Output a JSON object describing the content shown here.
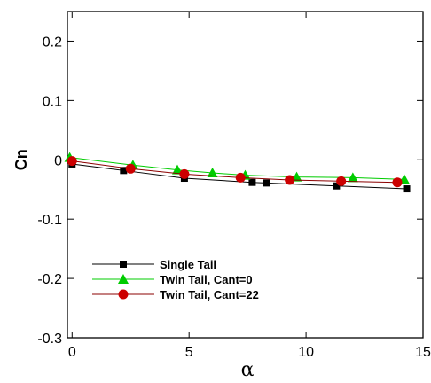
{
  "chart_data": {
    "type": "line",
    "title": "",
    "xlabel": "α",
    "ylabel": "Cn",
    "xlim": [
      -0.2,
      15
    ],
    "ylim": [
      -0.3,
      0.25
    ],
    "x_ticks": [
      0,
      5,
      10,
      15
    ],
    "x_tick_labels": [
      "0",
      "5",
      "10",
      "15"
    ],
    "y_ticks": [
      -0.3,
      -0.2,
      -0.1,
      0,
      0.1,
      0.2
    ],
    "y_tick_labels": [
      "-0.3",
      "-0.2",
      "-0.1",
      "0",
      "0.1",
      "0.2"
    ],
    "grid": false,
    "legend_position": "bottom-left",
    "series": [
      {
        "name": "Single Tail",
        "color": "#000000",
        "marker": "square",
        "x": [
          0.0,
          2.2,
          4.8,
          7.7,
          8.3,
          11.3,
          14.3
        ],
        "y": [
          -0.007,
          -0.018,
          -0.031,
          -0.038,
          -0.039,
          -0.044,
          -0.049
        ]
      },
      {
        "name": "Twin Tail, Cant=0",
        "color": "#00cc00",
        "marker": "triangle",
        "x": [
          -0.1,
          2.6,
          4.5,
          6.0,
          7.4,
          9.6,
          12.0,
          14.2
        ],
        "y": [
          0.004,
          -0.009,
          -0.017,
          -0.022,
          -0.026,
          -0.029,
          -0.03,
          -0.033
        ]
      },
      {
        "name": "Twin Tail, Cant=22",
        "color": "#cc0000",
        "line_color": "#8b0000",
        "marker": "circle",
        "x": [
          0.0,
          2.5,
          4.8,
          7.2,
          9.3,
          11.5,
          13.9
        ],
        "y": [
          -0.002,
          -0.015,
          -0.024,
          -0.03,
          -0.034,
          -0.036,
          -0.038
        ]
      }
    ]
  }
}
